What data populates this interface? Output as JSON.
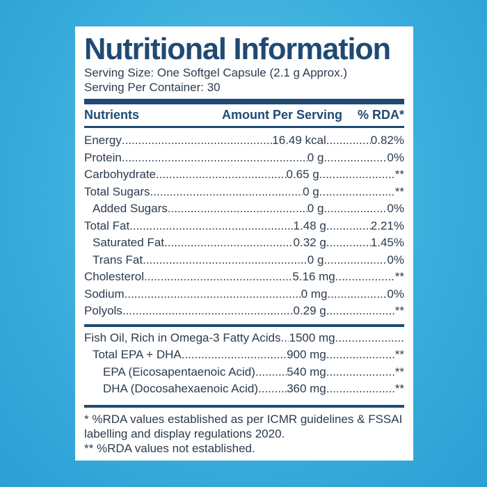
{
  "title": "Nutritional Information",
  "serving_size": "Serving Size: One Softgel Capsule (2.1 g Approx.)",
  "serving_per_container": "Serving Per Container: 30",
  "headers": {
    "nutrients": "Nutrients",
    "amount": "Amount Per Serving",
    "rda": "% RDA*"
  },
  "nutrients": [
    {
      "name": "Energy",
      "amount": "16.49 kcal",
      "rda": "0.82%"
    },
    {
      "name": "Protein",
      "amount": "0 g",
      "rda": "0%"
    },
    {
      "name": "Carbohydrate",
      "amount": "0.65 g",
      "rda": "**"
    },
    {
      "name": "Total Sugars",
      "amount": "0 g",
      "rda": "**"
    },
    {
      "name": "Added Sugars",
      "amount": "0 g",
      "rda": "0%"
    },
    {
      "name": "Total Fat",
      "amount": "1.48 g",
      "rda": "2.21%"
    },
    {
      "name": "Saturated Fat",
      "amount": "0.32 g",
      "rda": "1.45%"
    },
    {
      "name": "Trans Fat",
      "amount": "0 g",
      "rda": "0%"
    },
    {
      "name": "Cholesterol",
      "amount": "5.16 mg",
      "rda": "**"
    },
    {
      "name": "Sodium",
      "amount": "0 mg",
      "rda": "0%"
    },
    {
      "name": "Polyols",
      "amount": "0.29 g",
      "rda": "**"
    }
  ],
  "fish_oil": [
    {
      "name": "Fish Oil, Rich in Omega-3 Fatty Acids",
      "amount": "1500 mg",
      "rda": "**"
    },
    {
      "name": "Total EPA + DHA",
      "amount": "900 mg",
      "rda": "**"
    },
    {
      "name": "EPA (Eicosapentaenoic Acid)",
      "amount": "540 mg",
      "rda": "**"
    },
    {
      "name": "DHA (Docosahexaenoic Acid)",
      "amount": "360 mg",
      "rda": "**"
    }
  ],
  "notes": [
    "* %RDA values established as per ICMR guidelines & FSSAI",
    "labelling and display regulations 2020.",
    "** %RDA values not established."
  ]
}
